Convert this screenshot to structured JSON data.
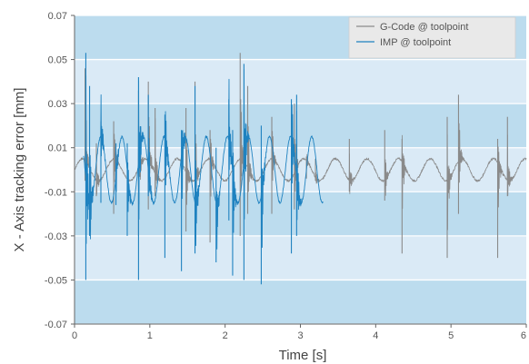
{
  "chart_data": {
    "type": "line",
    "title": "",
    "xlabel": "Time [s]",
    "ylabel": "X - Axis tracking error [mm]",
    "xlim": [
      0,
      6
    ],
    "ylim": [
      -0.07,
      0.07
    ],
    "x_ticks": [
      0,
      1,
      2,
      3,
      4,
      5,
      6
    ],
    "x_tick_labels": [
      "0",
      "1",
      "2",
      "3",
      "4",
      "5",
      "6"
    ],
    "y_ticks": [
      -0.07,
      -0.05,
      -0.03,
      -0.01,
      0.01,
      0.03,
      0.05,
      0.07
    ],
    "y_tick_labels": [
      "-0.07",
      "-0.05",
      "-0.03",
      "-0.01",
      "0.01",
      "0.03",
      "0.05",
      "0.07"
    ],
    "band_colors": [
      "#bcdcee",
      "#daeaf6"
    ],
    "legend_position": "top-right",
    "legend": [
      {
        "label": "G-Code @ toolpoint",
        "color": "#8a8a8a"
      },
      {
        "label": "IMP @ toolpoint",
        "color": "#1f82c0"
      }
    ],
    "series": [
      {
        "name": "G-Code @ toolpoint",
        "color": "#8a8a8a",
        "baseline": {
          "x_range": [
            0,
            6
          ],
          "amplitude": 0.005,
          "period": 0.42
        },
        "spikes": [
          {
            "x": 0.14,
            "min": -0.005,
            "max": 0.046
          },
          {
            "x": 0.29,
            "min": -0.012,
            "max": 0.012
          },
          {
            "x": 0.52,
            "min": -0.02,
            "max": 0.022
          },
          {
            "x": 0.85,
            "min": -0.03,
            "max": 0.036
          },
          {
            "x": 0.98,
            "min": -0.018,
            "max": 0.04
          },
          {
            "x": 1.07,
            "min": -0.012,
            "max": 0.028
          },
          {
            "x": 1.48,
            "min": -0.028,
            "max": 0.028
          },
          {
            "x": 1.6,
            "min": -0.015,
            "max": 0.04
          },
          {
            "x": 1.8,
            "min": -0.033,
            "max": 0.018
          },
          {
            "x": 2.2,
            "min": -0.03,
            "max": 0.053
          },
          {
            "x": 2.3,
            "min": -0.02,
            "max": 0.038
          },
          {
            "x": 2.62,
            "min": -0.02,
            "max": 0.024
          },
          {
            "x": 2.92,
            "min": -0.018,
            "max": 0.03
          },
          {
            "x": 3.08,
            "min": -0.004,
            "max": 0.006
          },
          {
            "x": 3.2,
            "min": -0.005,
            "max": 0.005
          },
          {
            "x": 3.65,
            "min": -0.01,
            "max": 0.014
          },
          {
            "x": 4.12,
            "min": -0.014,
            "max": 0.018
          },
          {
            "x": 4.35,
            "min": -0.038,
            "max": 0.014
          },
          {
            "x": 4.95,
            "min": -0.04,
            "max": 0.024
          },
          {
            "x": 5.1,
            "min": -0.02,
            "max": 0.034
          },
          {
            "x": 5.62,
            "min": -0.04,
            "max": 0.014
          },
          {
            "x": 5.75,
            "min": -0.012,
            "max": 0.024
          }
        ]
      },
      {
        "name": "IMP @ toolpoint",
        "color": "#1f82c0",
        "baseline": {
          "x_range": [
            0.12,
            3.3
          ],
          "amplitude": 0.015,
          "period": 0.28
        },
        "spikes": [
          {
            "x": 0.15,
            "min": -0.05,
            "max": 0.053
          },
          {
            "x": 0.2,
            "min": -0.03,
            "max": 0.038
          },
          {
            "x": 0.35,
            "min": -0.015,
            "max": 0.022
          },
          {
            "x": 0.55,
            "min": -0.016,
            "max": 0.012
          },
          {
            "x": 0.7,
            "min": -0.03,
            "max": 0.012
          },
          {
            "x": 0.85,
            "min": -0.05,
            "max": 0.042
          },
          {
            "x": 0.98,
            "min": -0.012,
            "max": 0.034
          },
          {
            "x": 1.2,
            "min": -0.04,
            "max": 0.025
          },
          {
            "x": 1.42,
            "min": -0.046,
            "max": 0.018
          },
          {
            "x": 1.6,
            "min": -0.038,
            "max": 0.038
          },
          {
            "x": 1.88,
            "min": -0.042,
            "max": 0.01
          },
          {
            "x": 2.05,
            "min": -0.023,
            "max": 0.032
          },
          {
            "x": 2.1,
            "min": -0.048,
            "max": 0.018
          },
          {
            "x": 2.25,
            "min": -0.05,
            "max": 0.048
          },
          {
            "x": 2.48,
            "min": -0.052,
            "max": 0.02
          },
          {
            "x": 2.88,
            "min": -0.038,
            "max": 0.032
          },
          {
            "x": 2.95,
            "min": -0.03,
            "max": 0.034
          }
        ]
      }
    ]
  }
}
